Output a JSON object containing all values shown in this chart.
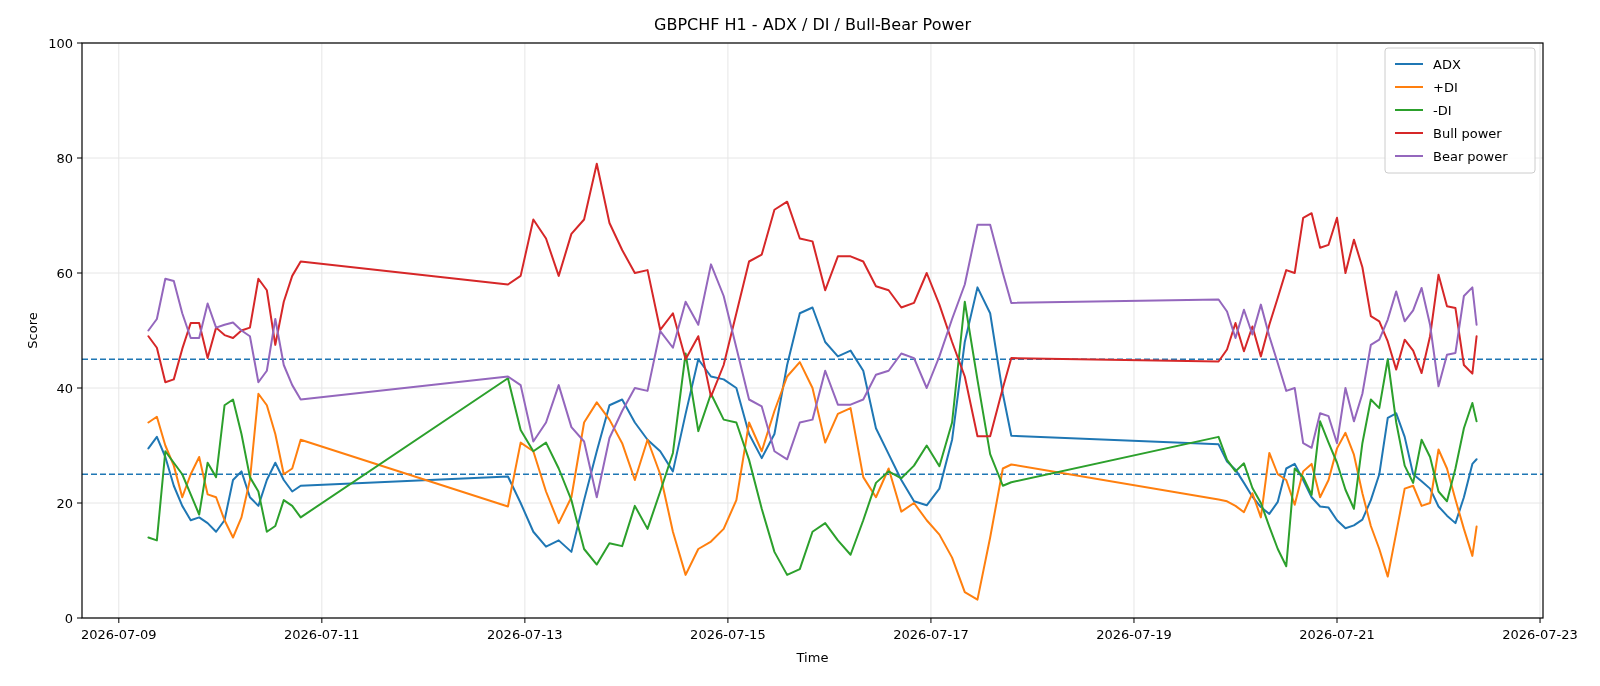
{
  "chart_data": {
    "type": "line",
    "title": "GBPCHF H1 - ADX / DI / Bull-Bear Power",
    "xlabel": "Time",
    "ylabel": "Score",
    "x": [
      "2026-07-09T07:00",
      "2026-07-09T09:00",
      "2026-07-09T11:00",
      "2026-07-09T13:00",
      "2026-07-09T15:00",
      "2026-07-09T17:00",
      "2026-07-09T19:00",
      "2026-07-09T21:00",
      "2026-07-09T23:00",
      "2026-07-10T01:00",
      "2026-07-10T03:00",
      "2026-07-10T05:00",
      "2026-07-10T07:00",
      "2026-07-10T09:00",
      "2026-07-10T11:00",
      "2026-07-10T13:00",
      "2026-07-10T15:00",
      "2026-07-10T17:00",
      "2026-07-10T19:00",
      "2026-07-12T20:00",
      "2026-07-12T23:00",
      "2026-07-13T02:00",
      "2026-07-13T05:00",
      "2026-07-13T08:00",
      "2026-07-13T11:00",
      "2026-07-13T14:00",
      "2026-07-13T17:00",
      "2026-07-13T20:00",
      "2026-07-13T23:00",
      "2026-07-14T02:00",
      "2026-07-14T05:00",
      "2026-07-14T08:00",
      "2026-07-14T11:00",
      "2026-07-14T14:00",
      "2026-07-14T17:00",
      "2026-07-14T20:00",
      "2026-07-14T23:00",
      "2026-07-15T02:00",
      "2026-07-15T05:00",
      "2026-07-15T08:00",
      "2026-07-15T11:00",
      "2026-07-15T14:00",
      "2026-07-15T17:00",
      "2026-07-15T20:00",
      "2026-07-15T23:00",
      "2026-07-16T02:00",
      "2026-07-16T05:00",
      "2026-07-16T08:00",
      "2026-07-16T11:00",
      "2026-07-16T14:00",
      "2026-07-16T17:00",
      "2026-07-16T20:00",
      "2026-07-16T23:00",
      "2026-07-17T02:00",
      "2026-07-17T05:00",
      "2026-07-17T08:00",
      "2026-07-17T11:00",
      "2026-07-17T14:00",
      "2026-07-17T17:00",
      "2026-07-17T19:00",
      "2026-07-19T20:00",
      "2026-07-19T22:00",
      "2026-07-20T00:00",
      "2026-07-20T02:00",
      "2026-07-20T04:00",
      "2026-07-20T06:00",
      "2026-07-20T08:00",
      "2026-07-20T10:00",
      "2026-07-20T12:00",
      "2026-07-20T14:00",
      "2026-07-20T16:00",
      "2026-07-20T18:00",
      "2026-07-20T20:00",
      "2026-07-20T22:00",
      "2026-07-21T00:00",
      "2026-07-21T02:00",
      "2026-07-21T04:00",
      "2026-07-21T06:00",
      "2026-07-21T08:00",
      "2026-07-21T10:00",
      "2026-07-21T12:00",
      "2026-07-21T14:00",
      "2026-07-21T16:00",
      "2026-07-21T18:00",
      "2026-07-21T20:00",
      "2026-07-21T22:00",
      "2026-07-22T00:00",
      "2026-07-22T02:00",
      "2026-07-22T04:00",
      "2026-07-22T06:00",
      "2026-07-22T08:00",
      "2026-07-22T09:00"
    ],
    "series": [
      {
        "name": "ADX",
        "color": "#1f77b4",
        "values": [
          29.5,
          31.5,
          28,
          23,
          19.5,
          17,
          17.5,
          16.5,
          15,
          17,
          24,
          25.5,
          21,
          19.5,
          24,
          27,
          24,
          22,
          23,
          24.6,
          20,
          15,
          12.4,
          13.5,
          11.5,
          20.5,
          29,
          37,
          38,
          34,
          31,
          29,
          25.5,
          35.5,
          45,
          42,
          41.5,
          40,
          32,
          27.8,
          32,
          44,
          53,
          54,
          48,
          45.5,
          46.5,
          43,
          33,
          28.5,
          24,
          20.3,
          19.6,
          22.5,
          31,
          48,
          57.5,
          53,
          39,
          31.7,
          30.2,
          27.2,
          25.8,
          23.5,
          21.1,
          19.3,
          18.1,
          20.2,
          26,
          26.8,
          24,
          21,
          19.4,
          19.2,
          17,
          15.6,
          16.1,
          17.1,
          20.5,
          25,
          34.8,
          35.6,
          31.5,
          25,
          23.8,
          22.5,
          19.4,
          17.8,
          16.5,
          21,
          26.8,
          27.6
        ]
      },
      {
        "name": "+DI",
        "color": "#ff7f0e",
        "values": [
          34,
          35,
          30,
          26.5,
          21,
          25,
          28,
          21.5,
          21,
          17,
          14,
          17.5,
          24,
          39,
          37,
          32,
          25,
          26,
          31,
          19.4,
          30.5,
          29,
          22,
          16.5,
          21,
          34,
          37.5,
          34.5,
          30.4,
          24,
          31,
          25,
          15,
          7.5,
          12,
          13.3,
          15.5,
          20.5,
          34,
          29,
          36,
          42,
          44.5,
          40,
          30.5,
          35.5,
          36.5,
          24.5,
          21,
          26,
          18.5,
          20,
          17,
          14.5,
          10.5,
          4.5,
          3.2,
          14,
          26,
          26.7,
          20.6,
          20.3,
          19.5,
          18.4,
          21.7,
          17.5,
          28.7,
          25,
          24,
          19.7,
          25.5,
          26.8,
          21,
          24,
          29.5,
          32.2,
          28.4,
          21.7,
          16,
          12,
          7.2,
          14.8,
          22.5,
          23,
          19.5,
          20,
          29.3,
          26,
          20.6,
          15.5,
          10.8,
          15.9
        ]
      },
      {
        "name": "-DI",
        "color": "#2ca02c",
        "values": [
          14,
          13.5,
          29,
          27,
          25,
          21.5,
          18,
          27,
          24.5,
          37,
          38,
          32,
          24.5,
          22,
          15,
          16,
          20.5,
          19.5,
          17.5,
          41.7,
          32.7,
          29,
          30.5,
          26,
          20.5,
          12,
          9.3,
          13,
          12.5,
          19.5,
          15.5,
          22,
          28.7,
          46,
          32.5,
          39,
          34.5,
          34,
          27.5,
          19,
          11.5,
          7.5,
          8.5,
          15,
          16.5,
          13.5,
          11,
          17,
          23.5,
          25.5,
          24.3,
          26.5,
          30,
          26.4,
          34,
          55,
          41.4,
          28.5,
          23,
          23.6,
          31.5,
          27.5,
          25.5,
          26.9,
          22.6,
          20,
          15.9,
          12,
          9,
          26,
          24.5,
          21.4,
          34.2,
          30.5,
          27,
          22.3,
          19,
          30.4,
          38,
          36.5,
          45,
          34,
          26.5,
          23.5,
          31,
          28,
          22,
          20.3,
          26,
          33,
          37.4,
          34.2
        ]
      },
      {
        "name": "Bull power",
        "color": "#d62728",
        "values": [
          49,
          47,
          41,
          41.5,
          46.8,
          51.3,
          51.3,
          45.2,
          50.5,
          49.2,
          48.7,
          50,
          50.5,
          59,
          57,
          47.5,
          55,
          59.5,
          62,
          58,
          59.5,
          69.3,
          66,
          59.5,
          66.8,
          69.3,
          79,
          68.7,
          64,
          60,
          60.5,
          50.1,
          53,
          45,
          49,
          38.5,
          44,
          53,
          62,
          63.2,
          71,
          72.4,
          66,
          65.5,
          57,
          62.9,
          62.9,
          62,
          57.7,
          57,
          54,
          54.8,
          60,
          54.5,
          48,
          42,
          31.6,
          31.6,
          40,
          45.2,
          44.6,
          46.7,
          51.3,
          46.4,
          50.7,
          45.5,
          51,
          55.7,
          60.5,
          60,
          69.6,
          70.4,
          64.4,
          64.9,
          69.6,
          60,
          65.8,
          61,
          52.5,
          51.6,
          48.1,
          43.2,
          48.4,
          46.5,
          42.6,
          49,
          59.7,
          54.2,
          53.9,
          44,
          42.5,
          49
        ]
      },
      {
        "name": "Bear power",
        "color": "#9467bd",
        "values": [
          50,
          52,
          59,
          58.6,
          53,
          48.7,
          48.7,
          54.7,
          50.5,
          51,
          51.4,
          50,
          49,
          41,
          43,
          52,
          44,
          40.5,
          38,
          42,
          40.5,
          30.7,
          34,
          40.5,
          33.2,
          30.7,
          21,
          31.3,
          36,
          40,
          39.5,
          49.9,
          47,
          55,
          51,
          61.5,
          56,
          47,
          38,
          36.8,
          29,
          27.6,
          34,
          34.5,
          43,
          37.1,
          37.1,
          38,
          42.3,
          43,
          46,
          45.2,
          40,
          45.5,
          52,
          58,
          68.4,
          68.4,
          60,
          54.8,
          55.4,
          53.3,
          48.7,
          53.6,
          49.3,
          54.5,
          49,
          44.3,
          39.5,
          40,
          30.4,
          29.6,
          35.6,
          35.1,
          30.4,
          40,
          34.2,
          39,
          47.5,
          48.4,
          51.9,
          56.8,
          51.6,
          53.5,
          57.4,
          51,
          40.3,
          45.8,
          46.1,
          56,
          57.5,
          51
        ]
      }
    ],
    "xlim": [
      "2026-07-08T15:18",
      "2026-07-23T00:42"
    ],
    "xticks": [
      "2026-07-09",
      "2026-07-11",
      "2026-07-13",
      "2026-07-15",
      "2026-07-17",
      "2026-07-19",
      "2026-07-21",
      "2026-07-23"
    ],
    "ylim": [
      0,
      100
    ],
    "yticks": [
      0,
      20,
      40,
      60,
      80,
      100
    ],
    "ref_lines": [
      {
        "axis": "y",
        "value": 45,
        "color": "#1f77b4",
        "line_style": "dashed"
      },
      {
        "axis": "y",
        "value": 25,
        "color": "#1f77b4",
        "line_style": "dashed"
      }
    ],
    "grid": true,
    "legend": "top right",
    "marker": "none",
    "line_style": "solid"
  }
}
